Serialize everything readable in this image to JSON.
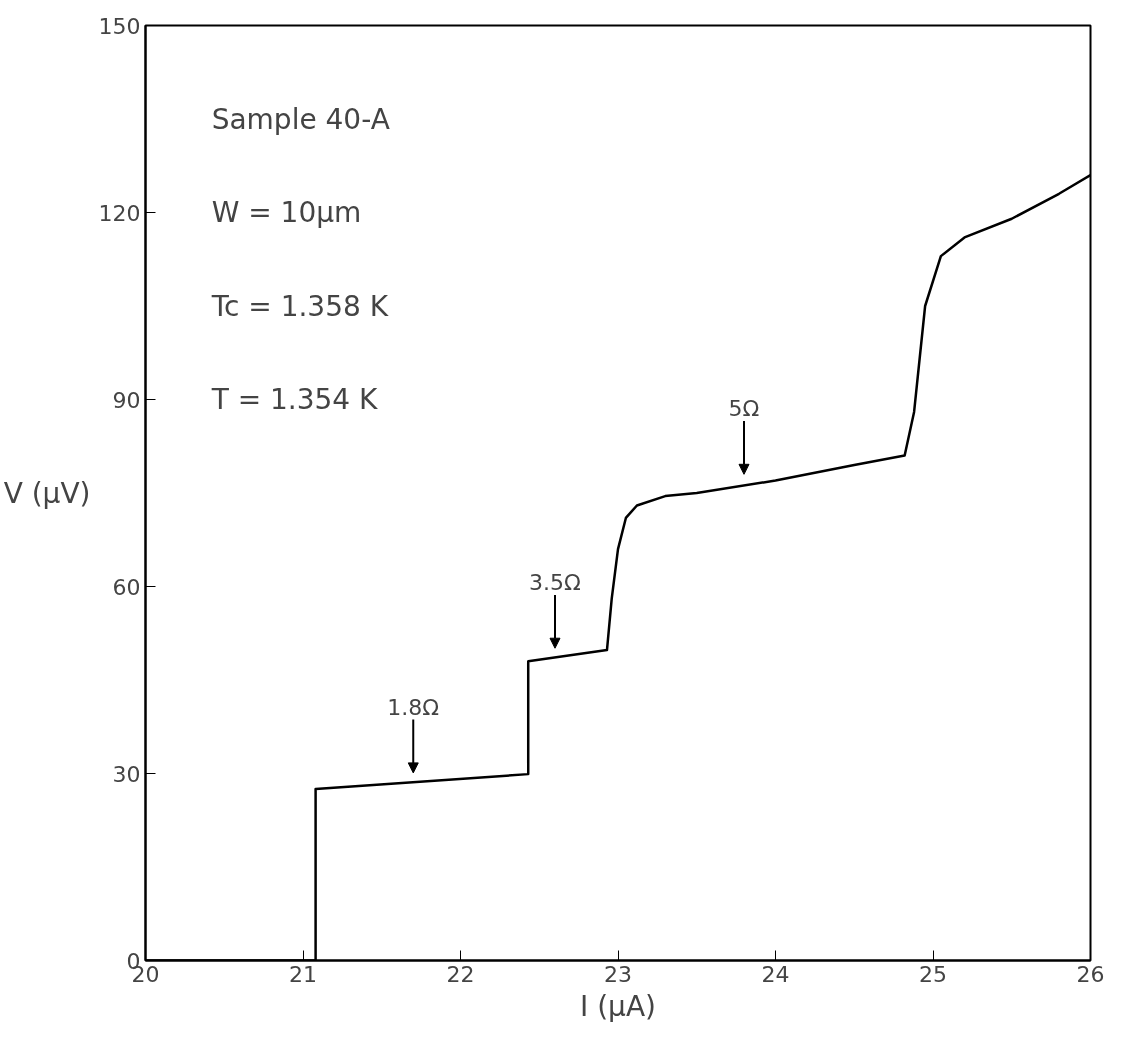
{
  "chart_data": {
    "type": "line",
    "xlabel": "I (µA)",
    "ylabel": "V (µV)",
    "x": [
      20,
      21.08,
      21.08,
      22.43,
      22.43,
      22.93,
      22.96,
      23.0,
      23.05,
      23.12,
      23.3,
      23.5,
      24.0,
      24.5,
      24.82,
      24.88,
      24.95,
      25.05,
      25.2,
      25.5,
      25.8,
      26.0
    ],
    "series": [
      {
        "color": "#000000",
        "values": [
          0,
          0,
          27.5,
          29.9,
          48,
          49.8,
          58,
          66,
          71,
          73,
          74.5,
          75,
          77,
          79.5,
          81,
          88,
          105,
          113,
          116,
          119,
          123,
          126
        ]
      }
    ],
    "xlim": [
      20,
      26
    ],
    "ylim": [
      0,
      150
    ],
    "xticks": [
      20,
      21,
      22,
      23,
      24,
      25,
      26
    ],
    "yticks": [
      0,
      30,
      60,
      90,
      120,
      150
    ],
    "grid": false,
    "marker": "none",
    "line_style": "solid",
    "annotations": [
      "Sample 40-A",
      "W = 10µm",
      "Tc = 1.358 K",
      "T = 1.354 K",
      {
        "text": "1.8Ω",
        "x": 21.7,
        "y": 28.9
      },
      {
        "text": "3.5Ω",
        "x": 22.6,
        "y": 48.9
      },
      {
        "text": "5Ω",
        "x": 23.8,
        "y": 76.8
      }
    ]
  }
}
